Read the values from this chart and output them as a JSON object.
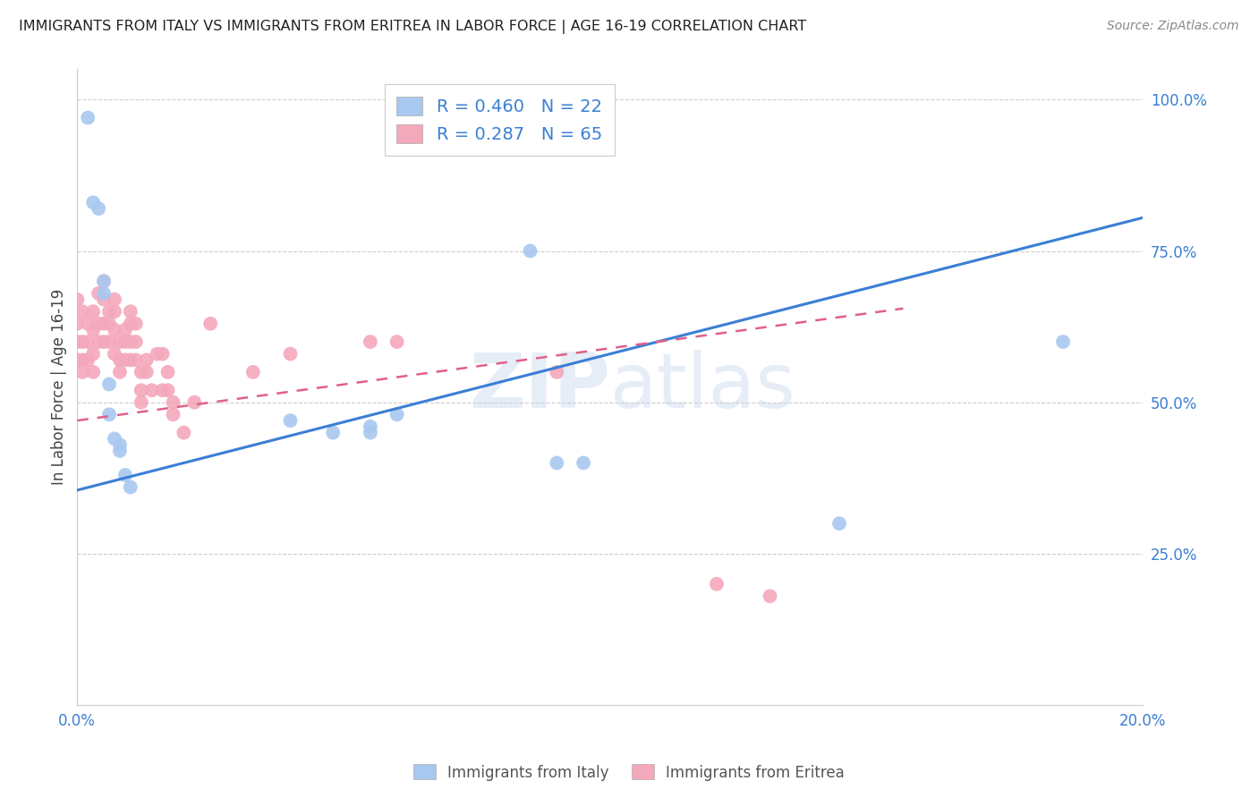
{
  "title": "IMMIGRANTS FROM ITALY VS IMMIGRANTS FROM ERITREA IN LABOR FORCE | AGE 16-19 CORRELATION CHART",
  "source": "Source: ZipAtlas.com",
  "ylabel": "In Labor Force | Age 16-19",
  "xlim": [
    0.0,
    0.2
  ],
  "ylim": [
    0.0,
    1.05
  ],
  "italy_color": "#a8c8f0",
  "eritrea_color": "#f4a8bc",
  "italy_R": 0.46,
  "italy_N": 22,
  "eritrea_R": 0.287,
  "eritrea_N": 65,
  "italy_line_color": "#3a7fd5",
  "eritrea_line_color": "#e0608a",
  "legend_text_color": "#3a7fd5",
  "watermark": "ZIPatlas",
  "italy_line_x0": 0.0,
  "italy_line_y0": 0.355,
  "italy_line_x1": 0.2,
  "italy_line_y1": 0.805,
  "eritrea_line_x0": 0.0,
  "eritrea_line_y0": 0.47,
  "eritrea_line_x1": 0.155,
  "eritrea_line_y1": 0.655,
  "italy_x": [
    0.002,
    0.003,
    0.004,
    0.005,
    0.005,
    0.006,
    0.006,
    0.007,
    0.008,
    0.008,
    0.009,
    0.01,
    0.04,
    0.048,
    0.055,
    0.055,
    0.06,
    0.085,
    0.09,
    0.095,
    0.143,
    0.185
  ],
  "italy_y": [
    0.97,
    0.83,
    0.82,
    0.7,
    0.68,
    0.53,
    0.48,
    0.44,
    0.43,
    0.42,
    0.38,
    0.36,
    0.47,
    0.45,
    0.46,
    0.45,
    0.48,
    0.75,
    0.4,
    0.4,
    0.3,
    0.6
  ],
  "eritrea_x": [
    0.0,
    0.0,
    0.0,
    0.0,
    0.001,
    0.001,
    0.001,
    0.001,
    0.002,
    0.002,
    0.002,
    0.003,
    0.003,
    0.003,
    0.003,
    0.004,
    0.004,
    0.004,
    0.005,
    0.005,
    0.005,
    0.005,
    0.006,
    0.006,
    0.006,
    0.007,
    0.007,
    0.007,
    0.007,
    0.008,
    0.008,
    0.008,
    0.009,
    0.009,
    0.009,
    0.01,
    0.01,
    0.01,
    0.01,
    0.011,
    0.011,
    0.011,
    0.012,
    0.012,
    0.012,
    0.013,
    0.013,
    0.014,
    0.015,
    0.016,
    0.016,
    0.017,
    0.017,
    0.018,
    0.018,
    0.02,
    0.022,
    0.025,
    0.033,
    0.04,
    0.055,
    0.06,
    0.09,
    0.12,
    0.13
  ],
  "eritrea_y": [
    0.67,
    0.63,
    0.6,
    0.57,
    0.65,
    0.6,
    0.57,
    0.55,
    0.63,
    0.6,
    0.57,
    0.65,
    0.62,
    0.58,
    0.55,
    0.68,
    0.63,
    0.6,
    0.7,
    0.67,
    0.63,
    0.6,
    0.65,
    0.63,
    0.6,
    0.67,
    0.65,
    0.62,
    0.58,
    0.6,
    0.57,
    0.55,
    0.62,
    0.6,
    0.57,
    0.65,
    0.63,
    0.6,
    0.57,
    0.63,
    0.6,
    0.57,
    0.55,
    0.52,
    0.5,
    0.57,
    0.55,
    0.52,
    0.58,
    0.58,
    0.52,
    0.55,
    0.52,
    0.5,
    0.48,
    0.45,
    0.5,
    0.63,
    0.55,
    0.58,
    0.6,
    0.6,
    0.55,
    0.2,
    0.18
  ]
}
